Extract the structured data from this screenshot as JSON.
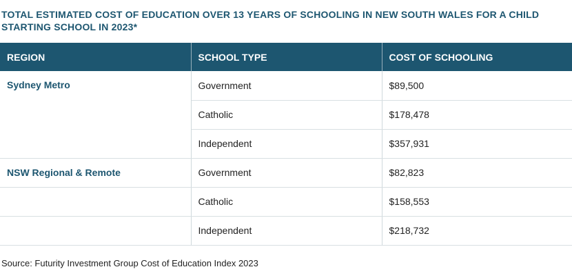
{
  "title": "TOTAL ESTIMATED COST OF EDUCATION OVER 13 YEARS OF SCHOOLING IN NEW SOUTH WALES FOR A CHILD STARTING SCHOOL IN 2023*",
  "table": {
    "headers": [
      "REGION",
      "SCHOOL TYPE",
      "COST OF SCHOOLING"
    ],
    "rows": [
      {
        "region": "Sydney Metro",
        "type": "Government",
        "cost": "$89,500"
      },
      {
        "region": "",
        "type": "Catholic",
        "cost": "$178,478"
      },
      {
        "region": "",
        "type": "Independent",
        "cost": "$357,931"
      },
      {
        "region": "NSW Regional & Remote",
        "type": "Government",
        "cost": "$82,823"
      },
      {
        "region": "",
        "type": "Catholic",
        "cost": "$158,553"
      },
      {
        "region": "",
        "type": "Independent",
        "cost": "$218,732"
      }
    ]
  },
  "source": "Source: Futurity Investment Group Cost of Education Index 2023",
  "colors": {
    "header_bg": "#1d5670",
    "title_text": "#1d5670",
    "region_text": "#1d5670"
  }
}
